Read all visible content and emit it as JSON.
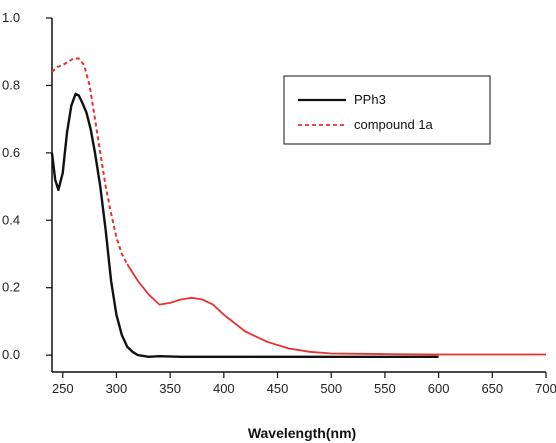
{
  "chart_data": {
    "type": "line",
    "title": "",
    "xlabel": "Wavelength(nm)",
    "ylabel": "",
    "xlim": [
      240,
      700
    ],
    "ylim": [
      -0.05,
      1.0
    ],
    "x_ticks": [
      250,
      300,
      350,
      400,
      450,
      500,
      550,
      600,
      650,
      700
    ],
    "x_tick_labels": [
      "250",
      "300",
      "350",
      "400",
      "450",
      "500",
      "550",
      "600",
      "650",
      "700"
    ],
    "y_ticks": [
      0.0,
      0.2,
      0.4,
      0.6,
      0.8,
      1.0
    ],
    "y_tick_labels": [
      "0.0",
      "0.2",
      "0.4",
      "0.6",
      "0.8",
      "1.0"
    ],
    "grid": false,
    "legend_position": "top-right",
    "series": [
      {
        "name": "PPh3",
        "color": "#111111",
        "line_style": "solid",
        "x": [
          240,
          243,
          246,
          250,
          254,
          258,
          262,
          265,
          268,
          272,
          276,
          280,
          285,
          290,
          295,
          300,
          305,
          310,
          315,
          320,
          330,
          340,
          360,
          400,
          450,
          500,
          550,
          600
        ],
        "y": [
          0.6,
          0.52,
          0.49,
          0.54,
          0.66,
          0.74,
          0.775,
          0.77,
          0.75,
          0.72,
          0.67,
          0.6,
          0.5,
          0.37,
          0.22,
          0.12,
          0.06,
          0.025,
          0.01,
          0.0,
          -0.005,
          -0.003,
          -0.005,
          -0.005,
          -0.005,
          -0.005,
          -0.005,
          -0.005
        ]
      },
      {
        "name": "compound 1a",
        "color": "#e8312e",
        "line_style": "dashed-to-solid",
        "x": [
          240,
          245,
          250,
          255,
          260,
          265,
          270,
          275,
          280,
          285,
          290,
          295,
          300,
          305,
          310,
          320,
          330,
          340,
          350,
          360,
          370,
          380,
          390,
          400,
          420,
          440,
          460,
          480,
          500,
          550,
          600,
          650,
          700
        ],
        "y": [
          0.84,
          0.855,
          0.86,
          0.87,
          0.88,
          0.88,
          0.86,
          0.8,
          0.7,
          0.6,
          0.5,
          0.42,
          0.35,
          0.3,
          0.27,
          0.22,
          0.18,
          0.15,
          0.155,
          0.165,
          0.17,
          0.165,
          0.15,
          0.12,
          0.07,
          0.04,
          0.02,
          0.01,
          0.005,
          0.003,
          0.002,
          0.002,
          0.002
        ]
      }
    ]
  }
}
